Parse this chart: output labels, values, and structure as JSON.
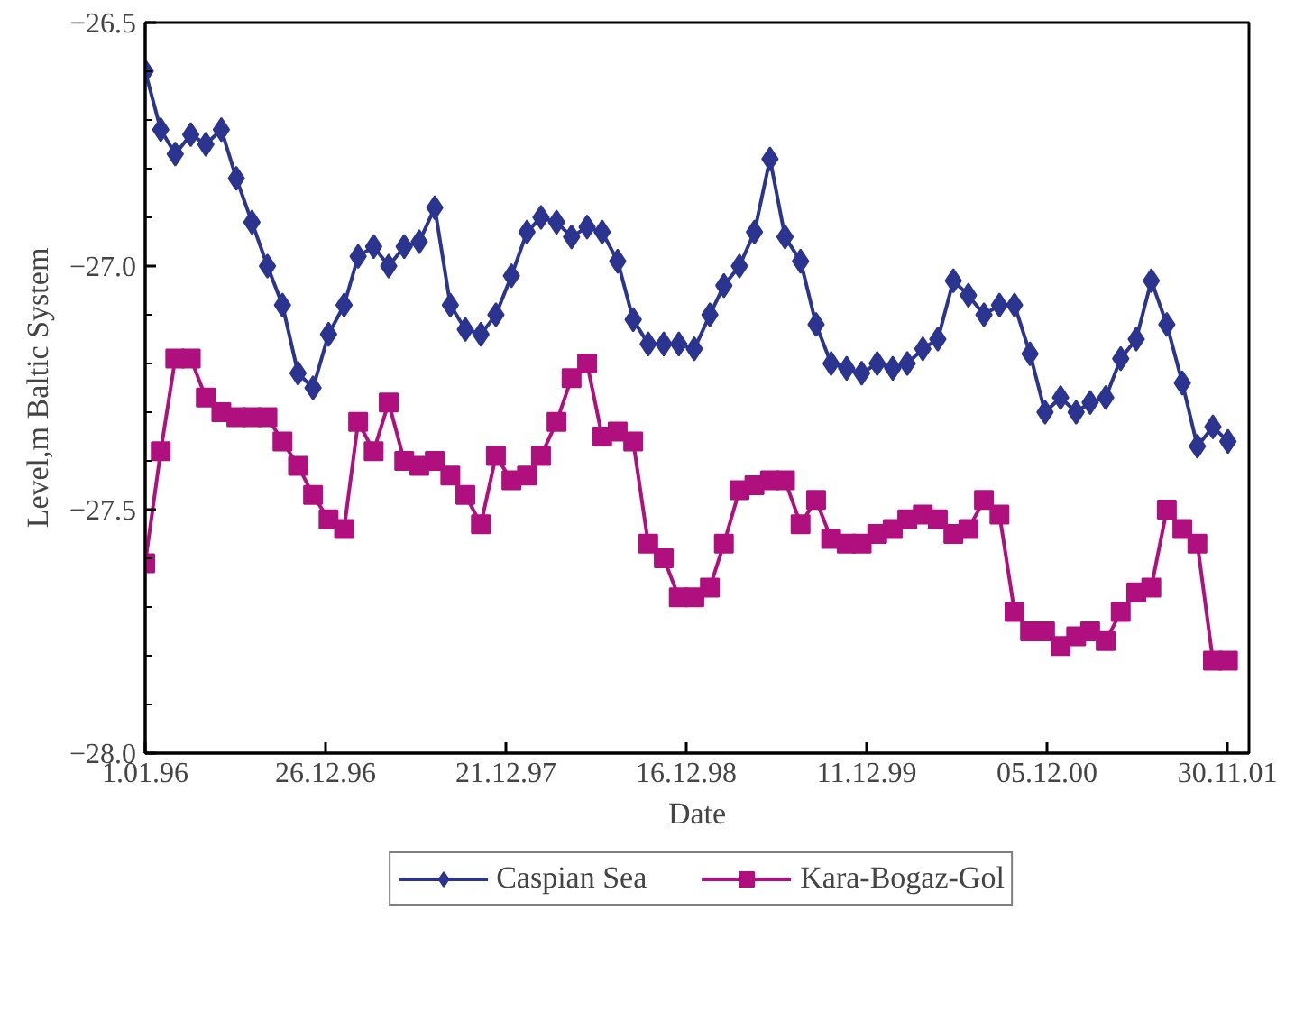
{
  "chart_data": {
    "type": "line",
    "xlabel": "Date",
    "ylabel": "Level,m Baltic System",
    "x": [
      "1996-01",
      "1996-02",
      "1996-03",
      "1996-04",
      "1996-05",
      "1996-06",
      "1996-07",
      "1996-08",
      "1996-09",
      "1996-10",
      "1996-11",
      "1996-12",
      "1997-01",
      "1997-02",
      "1997-03",
      "1997-04",
      "1997-05",
      "1997-06",
      "1997-07",
      "1997-08",
      "1997-09",
      "1997-10",
      "1997-11",
      "1997-12",
      "1998-01",
      "1998-02",
      "1998-03",
      "1998-04",
      "1998-05",
      "1998-06",
      "1998-07",
      "1998-08",
      "1998-09",
      "1998-10",
      "1998-11",
      "1998-12",
      "1999-01",
      "1999-02",
      "1999-03",
      "1999-04",
      "1999-05",
      "1999-06",
      "1999-07",
      "1999-08",
      "1999-09",
      "1999-10",
      "1999-11",
      "1999-12",
      "2000-01",
      "2000-02",
      "2000-03",
      "2000-04",
      "2000-05",
      "2000-06",
      "2000-07",
      "2000-08",
      "2000-09",
      "2000-10",
      "2000-11",
      "2000-12",
      "2001-01",
      "2001-02",
      "2001-03",
      "2001-04",
      "2001-05",
      "2001-06",
      "2001-07",
      "2001-08",
      "2001-09",
      "2001-10",
      "2001-11",
      "2001-12"
    ],
    "series": [
      {
        "name": "Caspian Sea",
        "color": "#2b3590",
        "marker": "diamond",
        "values": [
          -26.6,
          -26.72,
          -26.77,
          -26.73,
          -26.75,
          -26.72,
          -26.82,
          -26.91,
          -27.0,
          -27.08,
          -27.22,
          -27.25,
          -27.14,
          -27.08,
          -26.98,
          -26.96,
          -27.0,
          -26.96,
          -26.95,
          -26.88,
          -27.08,
          -27.13,
          -27.14,
          -27.1,
          -27.02,
          -26.93,
          -26.9,
          -26.91,
          -26.94,
          -26.92,
          -26.93,
          -26.99,
          -27.11,
          -27.16,
          -27.16,
          -27.16,
          -27.17,
          -27.1,
          -27.04,
          -27.0,
          -26.93,
          -26.78,
          -26.94,
          -26.99,
          -27.12,
          -27.2,
          -27.21,
          -27.22,
          -27.2,
          -27.21,
          -27.2,
          -27.17,
          -27.15,
          -27.03,
          -27.06,
          -27.1,
          -27.08,
          -27.08,
          -27.18,
          -27.3,
          -27.27,
          -27.3,
          -27.28,
          -27.27,
          -27.19,
          -27.15,
          -27.03,
          -27.12,
          -27.24,
          -27.37,
          -27.33,
          -27.36
        ]
      },
      {
        "name": "Kara-Bogaz-Gol",
        "color": "#b0107e",
        "marker": "square",
        "values": [
          -27.61,
          -27.38,
          -27.19,
          -27.19,
          -27.27,
          -27.3,
          -27.31,
          -27.31,
          -27.31,
          -27.36,
          -27.41,
          -27.47,
          -27.52,
          -27.54,
          -27.32,
          -27.38,
          -27.28,
          -27.4,
          -27.41,
          -27.4,
          -27.43,
          -27.47,
          -27.53,
          -27.39,
          -27.44,
          -27.43,
          -27.39,
          -27.32,
          -27.23,
          -27.2,
          -27.35,
          -27.34,
          -27.36,
          -27.57,
          -27.6,
          -27.68,
          -27.68,
          -27.66,
          -27.57,
          -27.46,
          -27.45,
          -27.44,
          -27.44,
          -27.53,
          -27.48,
          -27.56,
          -27.57,
          -27.57,
          -27.55,
          -27.54,
          -27.52,
          -27.51,
          -27.52,
          -27.55,
          -27.54,
          -27.48,
          -27.51,
          -27.71,
          -27.75,
          -27.75,
          -27.78,
          -27.76,
          -27.75,
          -27.77,
          -27.71,
          -27.67,
          -27.66,
          -27.5,
          -27.54,
          -27.57,
          -27.81,
          -27.81
        ]
      }
    ],
    "xlim": [
      "1996-01-01",
      "2002-01-12"
    ],
    "xticks": [
      {
        "value": "1996-01-01",
        "label": "1.01.96"
      },
      {
        "value": "1996-12-26",
        "label": "26.12.96"
      },
      {
        "value": "1997-12-21",
        "label": "21.12.97"
      },
      {
        "value": "1998-12-16",
        "label": "16.12.98"
      },
      {
        "value": "1999-12-11",
        "label": "11.12.99"
      },
      {
        "value": "2000-12-05",
        "label": "05.12.00"
      },
      {
        "value": "2001-11-30",
        "label": "30.11.01"
      }
    ],
    "ylim": [
      -28.0,
      -26.5
    ],
    "yticks": [
      {
        "value": -28.0,
        "label": "−28.0"
      },
      {
        "value": -27.9,
        "label": null
      },
      {
        "value": -27.8,
        "label": null
      },
      {
        "value": -27.7,
        "label": null
      },
      {
        "value": -27.6,
        "label": null
      },
      {
        "value": -27.5,
        "label": "−27.5"
      },
      {
        "value": -27.4,
        "label": null
      },
      {
        "value": -27.3,
        "label": null
      },
      {
        "value": -27.2,
        "label": null
      },
      {
        "value": -27.1,
        "label": null
      },
      {
        "value": -27.0,
        "label": "−27.0"
      },
      {
        "value": -26.9,
        "label": null
      },
      {
        "value": -26.8,
        "label": null
      },
      {
        "value": -26.7,
        "label": null
      },
      {
        "value": -26.6,
        "label": null
      },
      {
        "value": -26.5,
        "label": "−26.5"
      }
    ],
    "grid": false,
    "legend": "bottom",
    "line_style": "solid"
  }
}
